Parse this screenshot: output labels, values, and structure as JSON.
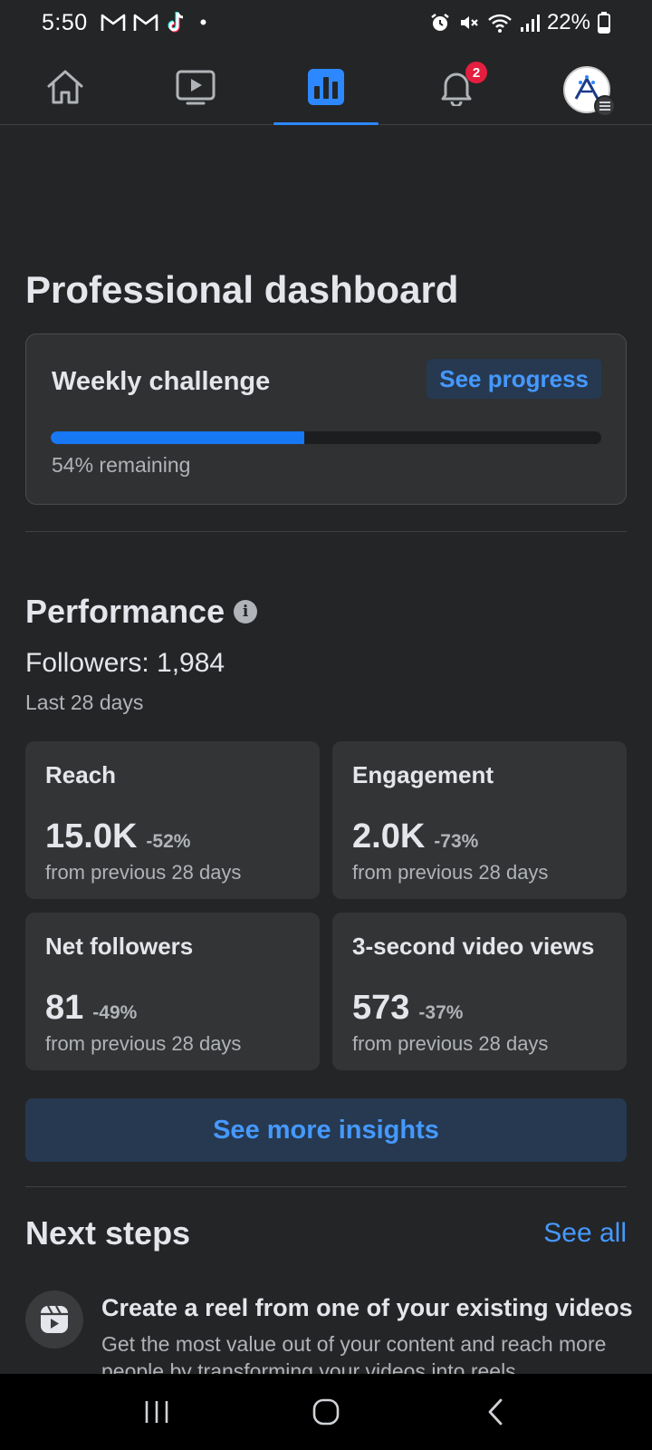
{
  "status_bar": {
    "time": "5:50",
    "battery": "22%",
    "dot": "•"
  },
  "nav": {
    "tabs": [
      {
        "icon": "home-icon"
      },
      {
        "icon": "video-icon"
      },
      {
        "icon": "dashboard-icon",
        "active": true
      },
      {
        "icon": "bell-icon",
        "badge": "2"
      },
      {
        "icon": "profile-avatar"
      }
    ]
  },
  "page": {
    "title": "Professional dashboard"
  },
  "challenge": {
    "title": "Weekly challenge",
    "see_progress": "See progress",
    "progress": 0.46,
    "remaining": "54% remaining"
  },
  "performance": {
    "title": "Performance",
    "info": "i",
    "followers": "Followers: 1,984",
    "period": "Last 28 days",
    "metrics": [
      {
        "label": "Reach",
        "value": "15.0K",
        "change": "-52%",
        "sub": "from previous 28 days"
      },
      {
        "label": "Engagement",
        "value": "2.0K",
        "change": "-73%",
        "sub": "from previous 28 days"
      },
      {
        "label": "Net followers",
        "value": "81",
        "change": "-49%",
        "sub": "from previous 28 days"
      },
      {
        "label": "3-second video views",
        "value": "573",
        "change": "-37%",
        "sub": "from previous 28 days"
      }
    ],
    "insights_button": "See more insights"
  },
  "next_steps": {
    "title": "Next steps",
    "see_all": "See all",
    "items": [
      {
        "icon": "reel-icon",
        "title": "Create a reel from one of your existing videos",
        "description": "Get the most value out of your content and reach more people by transforming your videos into reels."
      }
    ]
  },
  "colors": {
    "accent": "#2d88ff",
    "link": "#4599ff",
    "background": "#242526",
    "card": "#333435",
    "badge": "#e41e3f"
  }
}
